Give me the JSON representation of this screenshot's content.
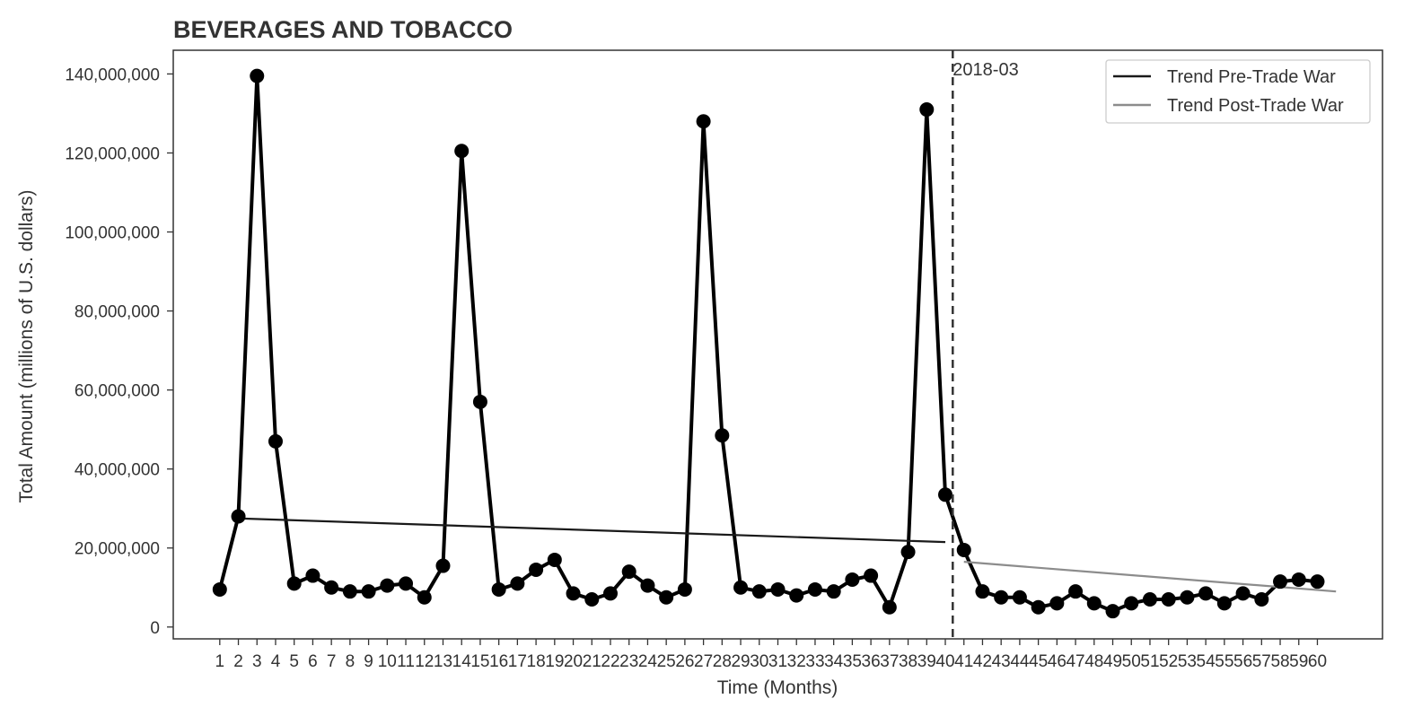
{
  "chart_data": {
    "type": "line",
    "title": "BEVERAGES AND TOBACCO",
    "xlabel": "Time (Months)",
    "ylabel": "Total Amount (millions of U.S. dollars)",
    "x": [
      1,
      2,
      3,
      4,
      5,
      6,
      7,
      8,
      9,
      10,
      11,
      12,
      13,
      14,
      15,
      16,
      17,
      18,
      19,
      20,
      21,
      22,
      23,
      24,
      25,
      26,
      27,
      28,
      29,
      30,
      31,
      32,
      33,
      34,
      35,
      36,
      37,
      38,
      39,
      40,
      41,
      42,
      43,
      44,
      45,
      46,
      47,
      48,
      49,
      50,
      51,
      52,
      53,
      54,
      55,
      56,
      57,
      58,
      59,
      60
    ],
    "xlim": [
      -1.5,
      63.5
    ],
    "ylim": [
      -3000000,
      146000000
    ],
    "yticks": [
      0,
      20000000,
      40000000,
      60000000,
      80000000,
      100000000,
      120000000,
      140000000
    ],
    "ytick_labels": [
      "0",
      "20,000,000",
      "40,000,000",
      "60,000,000",
      "80,000,000",
      "100,000,000",
      "120,000,000",
      "140,000,000"
    ],
    "series": [
      {
        "values": [
          9500000,
          28000000,
          139500000,
          47000000,
          11000000,
          13000000,
          10000000,
          9000000,
          9000000,
          10500000,
          11000000,
          7500000,
          15500000,
          120500000,
          57000000,
          9500000,
          11000000,
          14500000,
          17000000,
          8500000,
          7000000,
          8500000,
          14000000,
          10500000,
          7500000,
          9500000,
          128000000,
          48500000,
          10000000,
          9000000,
          9500000,
          8000000,
          9500000,
          9000000,
          12000000,
          13000000,
          5000000,
          19000000,
          131000000,
          33500000,
          19500000,
          9000000,
          7500000,
          7500000,
          5000000,
          6000000,
          9000000,
          6000000,
          4000000,
          6000000,
          7000000,
          7000000,
          7500000,
          8500000,
          6000000,
          8500000,
          7000000,
          11500000,
          12000000,
          11500000
        ],
        "color": "#000000"
      }
    ],
    "trend_lines": [
      {
        "name": "Trend Pre-Trade War",
        "x": [
          2,
          40
        ],
        "y": [
          27500000,
          21500000
        ],
        "color": "#1a1a1a"
      },
      {
        "name": "Trend Post-Trade War",
        "x": [
          41,
          61
        ],
        "y": [
          16500000,
          9000000
        ],
        "color": "#8c8c8c"
      }
    ],
    "vline": {
      "x": 40.4,
      "label": "2018-03",
      "color": "#333333"
    },
    "legend_placement": "top-right",
    "grid": false
  }
}
